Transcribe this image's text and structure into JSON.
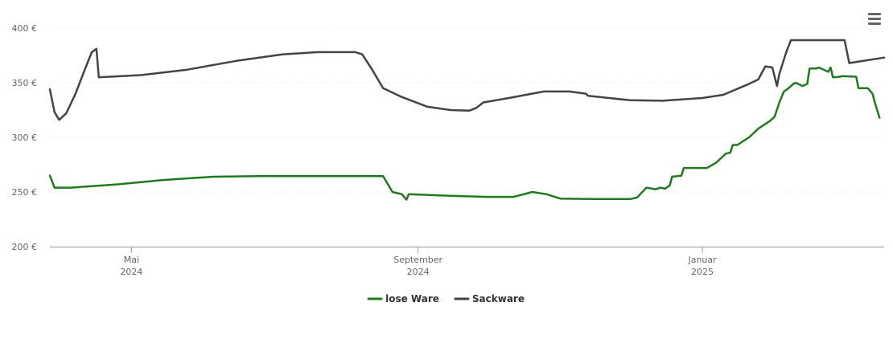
{
  "chart_data": {
    "type": "line",
    "title": "",
    "xlabel": "",
    "ylabel": "",
    "x_range": [
      "2024-03-27",
      "2025-03-20"
    ],
    "ylim": [
      200,
      400
    ],
    "y_ticks": [
      200,
      250,
      300,
      350,
      400
    ],
    "y_tick_labels": [
      "200 €",
      "250 €",
      "300 €",
      "350 €",
      "400 €"
    ],
    "x_ticks": [
      {
        "date": "2024-05-01",
        "line1": "Mai",
        "line2": "2024"
      },
      {
        "date": "2024-09-01",
        "line1": "September",
        "line2": "2024"
      },
      {
        "date": "2025-01-01",
        "line1": "Januar",
        "line2": "2025"
      }
    ],
    "grid": "horizontal",
    "legend_position": "bottom-center",
    "series": [
      {
        "name": "lose Ware",
        "color": "#1f7a1f",
        "points": [
          [
            "2024-03-27",
            265
          ],
          [
            "2024-03-29",
            254
          ],
          [
            "2024-04-05",
            254
          ],
          [
            "2024-04-25",
            257
          ],
          [
            "2024-05-15",
            261
          ],
          [
            "2024-06-05",
            264
          ],
          [
            "2024-06-25",
            264.5
          ],
          [
            "2024-08-15",
            264.5
          ],
          [
            "2024-08-17",
            264.5
          ],
          [
            "2024-08-21",
            250
          ],
          [
            "2024-08-25",
            248
          ],
          [
            "2024-08-27",
            243
          ],
          [
            "2024-08-28",
            248
          ],
          [
            "2024-09-15",
            246.5
          ],
          [
            "2024-10-01",
            245.5
          ],
          [
            "2024-10-12",
            245.5
          ],
          [
            "2024-10-20",
            250
          ],
          [
            "2024-10-26",
            248
          ],
          [
            "2024-11-01",
            244
          ],
          [
            "2024-11-15",
            243.5
          ],
          [
            "2024-12-01",
            243.5
          ],
          [
            "2024-12-04",
            245
          ],
          [
            "2024-12-08",
            254
          ],
          [
            "2024-12-12",
            252.5
          ],
          [
            "2024-12-14",
            254
          ],
          [
            "2024-12-16",
            253
          ],
          [
            "2024-12-18",
            256
          ],
          [
            "2024-12-19",
            264
          ],
          [
            "2024-12-23",
            265
          ],
          [
            "2024-12-24",
            272
          ],
          [
            "2025-01-03",
            272
          ],
          [
            "2025-01-07",
            277
          ],
          [
            "2025-01-11",
            285
          ],
          [
            "2025-01-13",
            286
          ],
          [
            "2025-01-14",
            293
          ],
          [
            "2025-01-16",
            293
          ],
          [
            "2025-01-21",
            300
          ],
          [
            "2025-01-25",
            308
          ],
          [
            "2025-01-30",
            315
          ],
          [
            "2025-02-01",
            319
          ],
          [
            "2025-02-03",
            332
          ],
          [
            "2025-02-05",
            342
          ],
          [
            "2025-02-07",
            345
          ],
          [
            "2025-02-09",
            349
          ],
          [
            "2025-02-10",
            350
          ],
          [
            "2025-02-13",
            347
          ],
          [
            "2025-02-15",
            349
          ],
          [
            "2025-02-16",
            363
          ],
          [
            "2025-02-19",
            363
          ],
          [
            "2025-02-20",
            364
          ],
          [
            "2025-02-24",
            360
          ],
          [
            "2025-02-25",
            364
          ],
          [
            "2025-02-26",
            355
          ],
          [
            "2025-02-29",
            355.5
          ],
          [
            "2025-03-02",
            356
          ],
          [
            "2025-03-08",
            355.5
          ],
          [
            "2025-03-09",
            345
          ],
          [
            "2025-03-13",
            345
          ],
          [
            "2025-03-15",
            340
          ],
          [
            "2025-03-16",
            332
          ],
          [
            "2025-03-18",
            318
          ]
        ]
      },
      {
        "name": "Sackware",
        "color": "#434348",
        "points": [
          [
            "2024-03-27",
            344
          ],
          [
            "2024-03-29",
            323
          ],
          [
            "2024-03-31",
            316
          ],
          [
            "2024-04-03",
            322
          ],
          [
            "2024-04-07",
            340
          ],
          [
            "2024-04-11",
            362
          ],
          [
            "2024-04-14",
            378
          ],
          [
            "2024-04-16",
            381
          ],
          [
            "2024-04-17",
            355
          ],
          [
            "2024-05-05",
            357
          ],
          [
            "2024-05-25",
            362
          ],
          [
            "2024-06-15",
            370
          ],
          [
            "2024-07-05",
            376
          ],
          [
            "2024-07-20",
            378
          ],
          [
            "2024-08-05",
            378
          ],
          [
            "2024-08-08",
            376
          ],
          [
            "2024-08-12",
            363
          ],
          [
            "2024-08-17",
            345
          ],
          [
            "2024-08-25",
            337
          ],
          [
            "2024-09-05",
            328
          ],
          [
            "2024-09-15",
            325
          ],
          [
            "2024-09-23",
            324.5
          ],
          [
            "2024-09-26",
            327
          ],
          [
            "2024-09-29",
            332
          ],
          [
            "2024-10-10",
            336
          ],
          [
            "2024-10-25",
            342
          ],
          [
            "2024-11-05",
            342
          ],
          [
            "2024-11-12",
            340
          ],
          [
            "2024-11-13",
            338
          ],
          [
            "2024-12-01",
            334
          ],
          [
            "2024-12-15",
            333.5
          ],
          [
            "2025-01-01",
            336
          ],
          [
            "2025-01-10",
            339
          ],
          [
            "2025-01-20",
            348
          ],
          [
            "2025-01-25",
            353
          ],
          [
            "2025-01-28",
            365
          ],
          [
            "2025-01-31",
            364
          ],
          [
            "2025-02-02",
            347
          ],
          [
            "2025-02-03",
            358
          ],
          [
            "2025-02-06",
            378
          ],
          [
            "2025-02-08",
            389
          ],
          [
            "2025-02-28",
            389
          ],
          [
            "2025-03-03",
            389
          ],
          [
            "2025-03-05",
            368
          ],
          [
            "2025-03-20",
            373
          ]
        ]
      }
    ]
  }
}
